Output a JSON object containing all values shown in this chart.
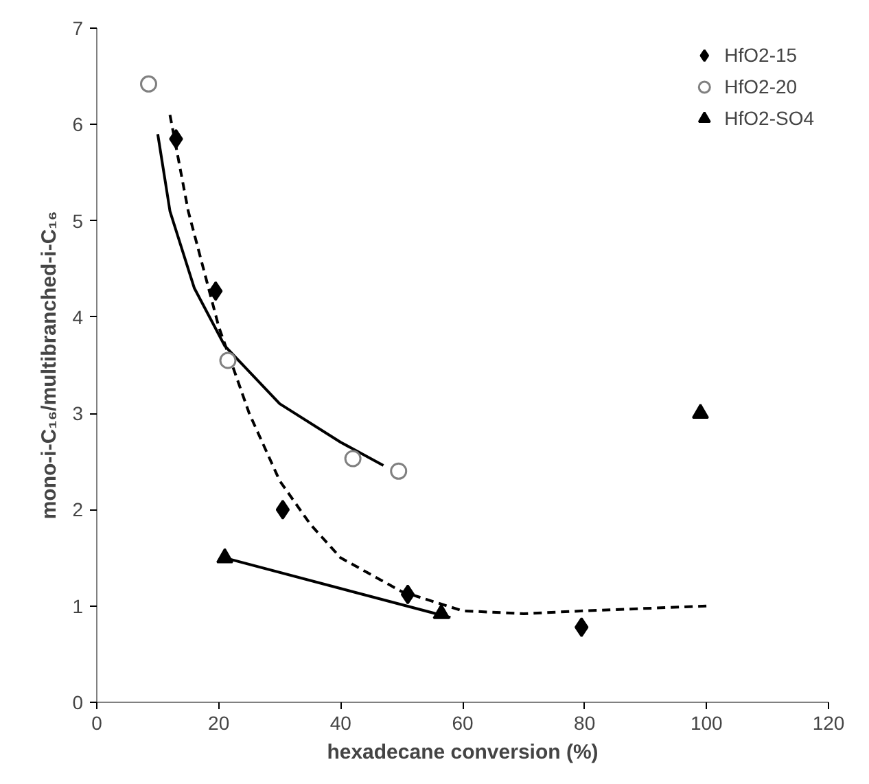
{
  "chart_data": {
    "type": "scatter",
    "xlabel": "hexadecane conversion (%)",
    "ylabel": "mono-i-C₁₆/multibranched-i-C₁₆",
    "xlim": [
      0,
      120
    ],
    "xticks": [
      0,
      20,
      40,
      60,
      80,
      100,
      120
    ],
    "ylim": [
      0,
      7
    ],
    "yticks": [
      0,
      1,
      2,
      3,
      4,
      5,
      6,
      7
    ],
    "grid": false,
    "legend": "top right",
    "series": [
      {
        "name": "HfO2-15",
        "type": "scatter",
        "marker": "diamond",
        "color": "#000000",
        "x": [
          13,
          19.5,
          30.5,
          51,
          79.5
        ],
        "values": [
          5.85,
          4.27,
          2.0,
          1.12,
          0.78
        ]
      },
      {
        "name": "HfO2-20",
        "type": "scatter",
        "marker": "circle",
        "color": "#808080",
        "x": [
          8.5,
          21.5,
          42,
          49.5
        ],
        "values": [
          6.42,
          3.55,
          2.53,
          2.4
        ]
      },
      {
        "name": "HfO2-SO4",
        "type": "scatter",
        "marker": "triangle",
        "color": "#000000",
        "x": [
          21,
          56.5,
          99
        ],
        "values": [
          1.5,
          0.92,
          3.0
        ]
      },
      {
        "type": "line",
        "line_style": "dashed",
        "color": "#000000",
        "x": [
          12,
          15,
          20,
          25,
          30,
          35,
          40,
          50,
          60,
          70,
          80,
          100
        ],
        "values": [
          6.1,
          5.1,
          3.9,
          3.0,
          2.3,
          1.85,
          1.5,
          1.15,
          0.95,
          0.92,
          0.95,
          1.0
        ]
      },
      {
        "type": "line",
        "line_style": "solid",
        "color": "#000000",
        "x": [
          10,
          12,
          16,
          21,
          30,
          40,
          47
        ],
        "values": [
          5.9,
          5.1,
          4.3,
          3.7,
          3.1,
          2.7,
          2.46
        ]
      },
      {
        "type": "line",
        "line_style": "solid",
        "color": "#000000",
        "x": [
          21,
          58
        ],
        "values": [
          1.5,
          0.88
        ]
      }
    ]
  }
}
